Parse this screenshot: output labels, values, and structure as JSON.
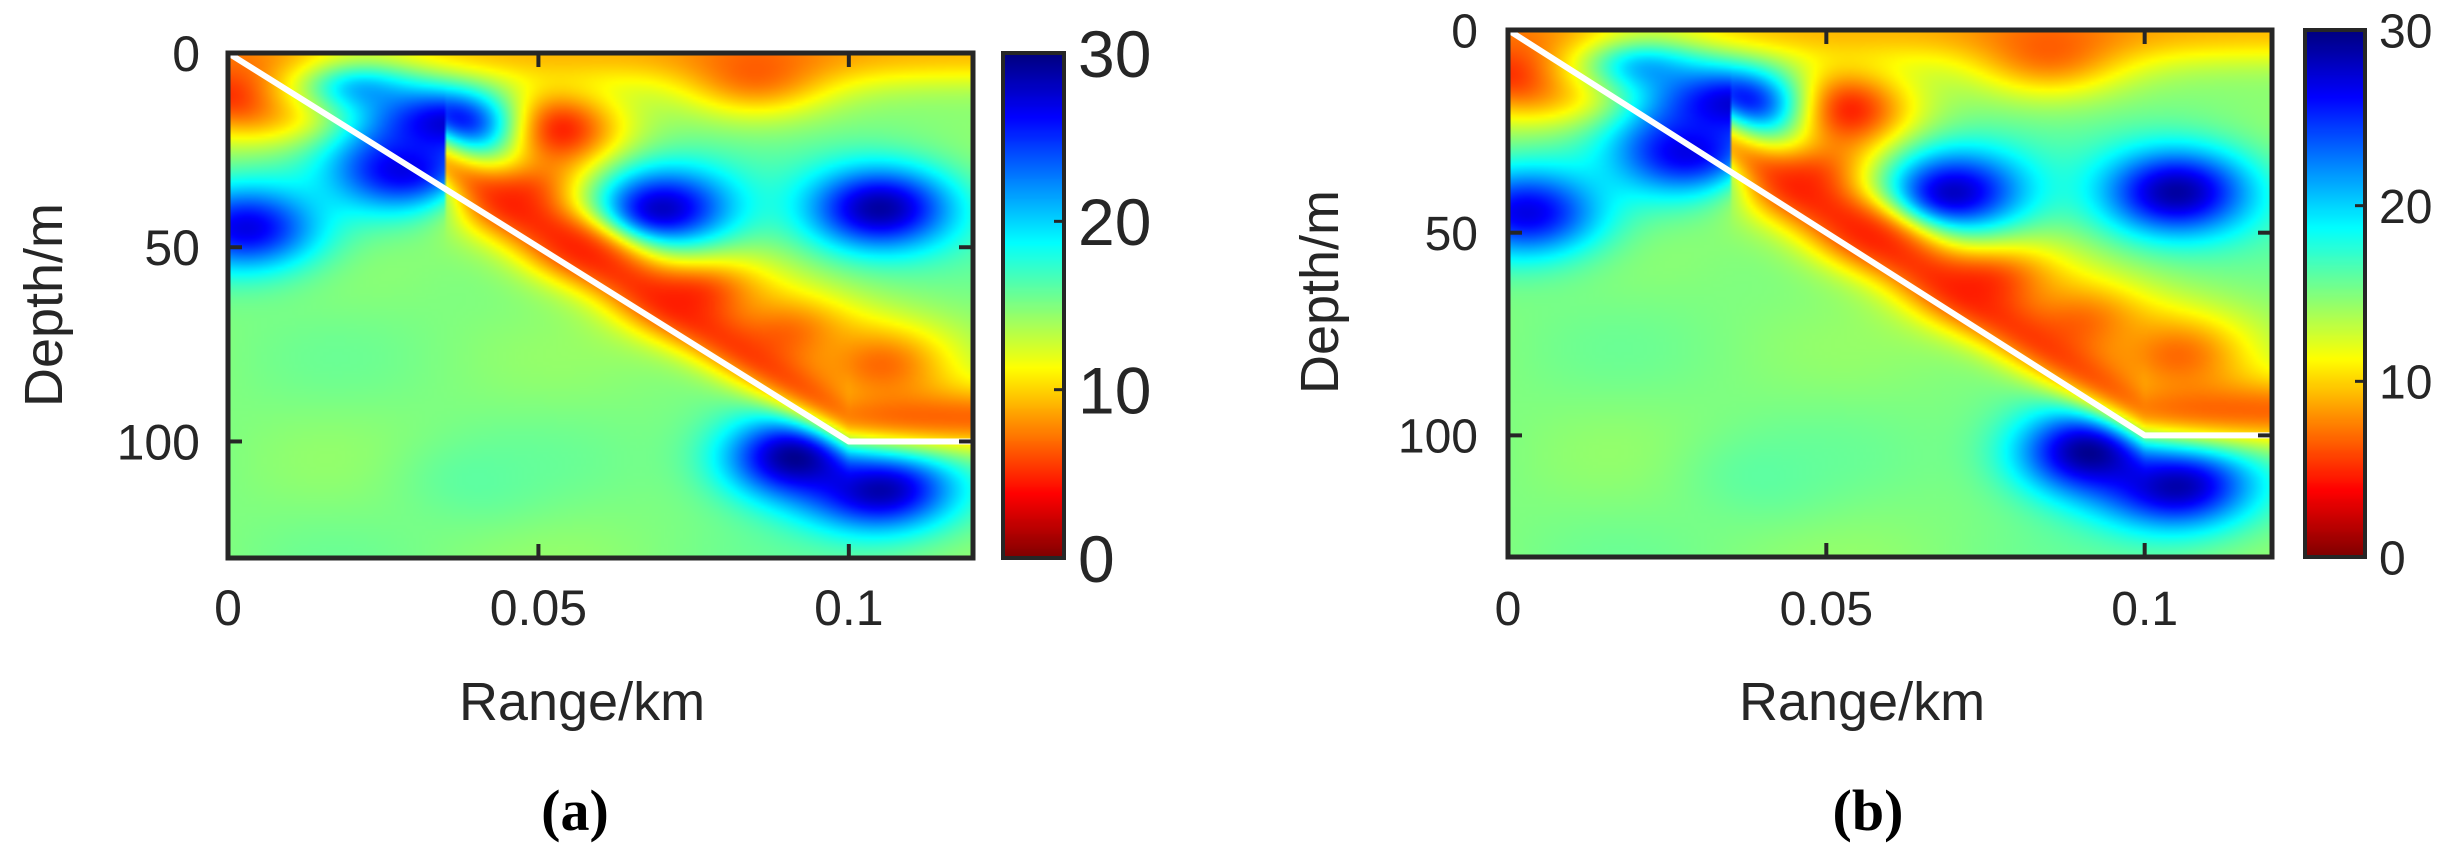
{
  "chart_data": [
    {
      "type": "heatmap",
      "panel_label": "(a)",
      "xlabel": "Range/km",
      "ylabel": "Depth/m",
      "xlim": [
        0,
        0.12
      ],
      "ylim": [
        130,
        0
      ],
      "x_ticks": [
        0,
        0.05,
        0.1
      ],
      "x_tick_labels": [
        "0",
        "0.05",
        "0.1"
      ],
      "y_ticks": [
        0,
        50,
        100
      ],
      "y_tick_labels": [
        "0",
        "50",
        "100"
      ],
      "colorbar": {
        "colormap": "jet-reversed",
        "range": [
          0,
          30
        ],
        "ticks": [
          0,
          10,
          20,
          30
        ],
        "tick_labels": [
          "0",
          "10",
          "20",
          "30"
        ]
      },
      "overlay_line": {
        "color": "#ffffff",
        "points": [
          [
            0,
            0
          ],
          [
            0.1,
            100
          ],
          [
            0.12,
            100
          ]
        ]
      },
      "features": [
        {
          "x": 0.002,
          "y": 10,
          "v": 4
        },
        {
          "x": 0.015,
          "y": 10,
          "v": 5
        },
        {
          "x": 0.05,
          "y": 20,
          "v": 1
        },
        {
          "x": 0.046,
          "y": 35,
          "v": 4
        },
        {
          "x": 0.06,
          "y": 48,
          "v": 3
        },
        {
          "x": 0.075,
          "y": 62,
          "v": 5
        },
        {
          "x": 0.09,
          "y": 72,
          "v": 7
        },
        {
          "x": 0.105,
          "y": 80,
          "v": 7
        },
        {
          "x": 0.085,
          "y": 5,
          "v": 7
        },
        {
          "x": 0.022,
          "y": 5,
          "v": 28
        },
        {
          "x": 0.035,
          "y": 18,
          "v": 28
        },
        {
          "x": 0.028,
          "y": 30,
          "v": 27
        },
        {
          "x": 0.07,
          "y": 40,
          "v": 28
        },
        {
          "x": 0.105,
          "y": 40,
          "v": 29
        },
        {
          "x": 0.003,
          "y": 45,
          "v": 27
        },
        {
          "x": 0.092,
          "y": 104,
          "v": 30
        },
        {
          "x": 0.105,
          "y": 112,
          "v": 29
        },
        {
          "x": 0.04,
          "y": 110,
          "v": 16
        }
      ]
    },
    {
      "type": "heatmap",
      "panel_label": "(b)",
      "xlabel": "Range/km",
      "ylabel": "Depth/m",
      "xlim": [
        0,
        0.12
      ],
      "ylim": [
        130,
        0
      ],
      "x_ticks": [
        0,
        0.05,
        0.1
      ],
      "x_tick_labels": [
        "0",
        "0.05",
        "0.1"
      ],
      "y_ticks": [
        0,
        50,
        100
      ],
      "y_tick_labels": [
        "0",
        "50",
        "100"
      ],
      "colorbar": {
        "colormap": "jet-reversed",
        "range": [
          0,
          30
        ],
        "ticks": [
          0,
          10,
          20,
          30
        ],
        "tick_labels": [
          "0",
          "10",
          "20",
          "30"
        ]
      },
      "overlay_line": {
        "color": "#ffffff",
        "points": [
          [
            0,
            0
          ],
          [
            0.1,
            100
          ],
          [
            0.12,
            100
          ]
        ]
      },
      "features": [
        {
          "x": 0.002,
          "y": 10,
          "v": 4
        },
        {
          "x": 0.015,
          "y": 10,
          "v": 5
        },
        {
          "x": 0.05,
          "y": 20,
          "v": 1
        },
        {
          "x": 0.046,
          "y": 35,
          "v": 4
        },
        {
          "x": 0.06,
          "y": 48,
          "v": 3
        },
        {
          "x": 0.075,
          "y": 62,
          "v": 5
        },
        {
          "x": 0.09,
          "y": 72,
          "v": 7
        },
        {
          "x": 0.105,
          "y": 80,
          "v": 7
        },
        {
          "x": 0.085,
          "y": 5,
          "v": 7
        },
        {
          "x": 0.022,
          "y": 5,
          "v": 28
        },
        {
          "x": 0.035,
          "y": 18,
          "v": 28
        },
        {
          "x": 0.028,
          "y": 30,
          "v": 27
        },
        {
          "x": 0.07,
          "y": 40,
          "v": 28
        },
        {
          "x": 0.105,
          "y": 40,
          "v": 29
        },
        {
          "x": 0.003,
          "y": 45,
          "v": 27
        },
        {
          "x": 0.092,
          "y": 104,
          "v": 30
        },
        {
          "x": 0.105,
          "y": 112,
          "v": 29
        },
        {
          "x": 0.04,
          "y": 110,
          "v": 16
        }
      ]
    }
  ]
}
